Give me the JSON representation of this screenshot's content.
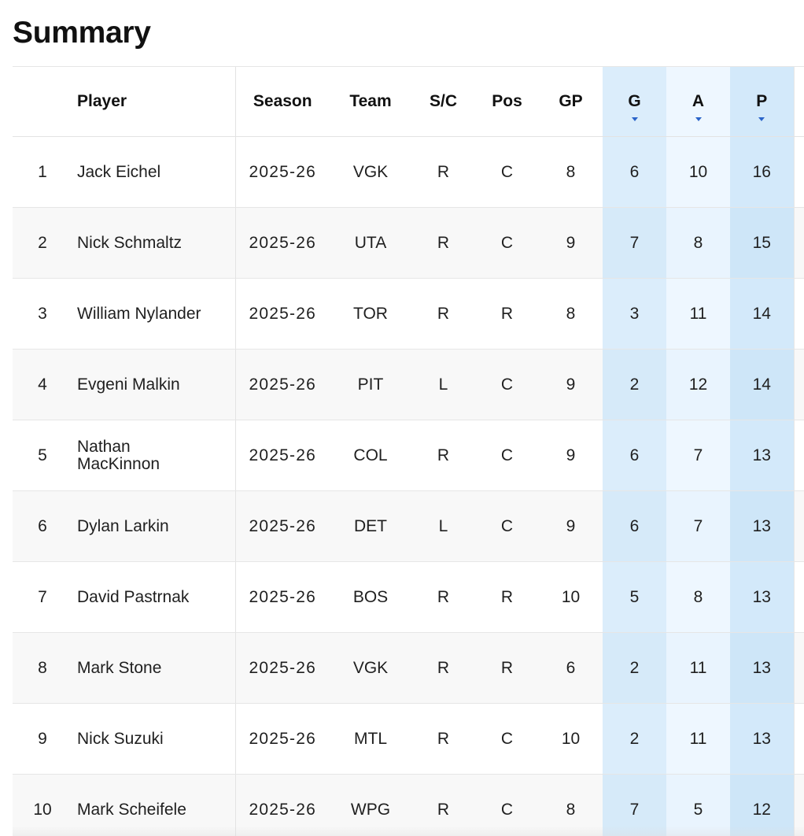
{
  "page_title": "Summary",
  "columns": {
    "rank": "",
    "player": "Player",
    "season": "Season",
    "team": "Team",
    "sc": "S/C",
    "pos": "Pos",
    "gp": "GP",
    "g": "G",
    "a": "A",
    "p": "P"
  },
  "sorted_columns": [
    "G",
    "A",
    "P"
  ],
  "highlight_colors": {
    "g_column": "#dbedfb",
    "a_column": "#eef7ff",
    "p_column": "#d3e9fa",
    "sort_arrow": "#2b64c9"
  },
  "rows": [
    {
      "rank": "1",
      "player": "Jack Eichel",
      "season": "2025-26",
      "team": "VGK",
      "sc": "R",
      "pos": "C",
      "gp": "8",
      "g": "6",
      "a": "10",
      "p": "16"
    },
    {
      "rank": "2",
      "player": "Nick Schmaltz",
      "season": "2025-26",
      "team": "UTA",
      "sc": "R",
      "pos": "C",
      "gp": "9",
      "g": "7",
      "a": "8",
      "p": "15"
    },
    {
      "rank": "3",
      "player": "William Nylander",
      "season": "2025-26",
      "team": "TOR",
      "sc": "R",
      "pos": "R",
      "gp": "8",
      "g": "3",
      "a": "11",
      "p": "14"
    },
    {
      "rank": "4",
      "player": "Evgeni Malkin",
      "season": "2025-26",
      "team": "PIT",
      "sc": "L",
      "pos": "C",
      "gp": "9",
      "g": "2",
      "a": "12",
      "p": "14"
    },
    {
      "rank": "5",
      "player": "Nathan MacKinnon",
      "season": "2025-26",
      "team": "COL",
      "sc": "R",
      "pos": "C",
      "gp": "9",
      "g": "6",
      "a": "7",
      "p": "13"
    },
    {
      "rank": "6",
      "player": "Dylan Larkin",
      "season": "2025-26",
      "team": "DET",
      "sc": "L",
      "pos": "C",
      "gp": "9",
      "g": "6",
      "a": "7",
      "p": "13"
    },
    {
      "rank": "7",
      "player": "David Pastrnak",
      "season": "2025-26",
      "team": "BOS",
      "sc": "R",
      "pos": "R",
      "gp": "10",
      "g": "5",
      "a": "8",
      "p": "13"
    },
    {
      "rank": "8",
      "player": "Mark Stone",
      "season": "2025-26",
      "team": "VGK",
      "sc": "R",
      "pos": "R",
      "gp": "6",
      "g": "2",
      "a": "11",
      "p": "13"
    },
    {
      "rank": "9",
      "player": "Nick Suzuki",
      "season": "2025-26",
      "team": "MTL",
      "sc": "R",
      "pos": "C",
      "gp": "10",
      "g": "2",
      "a": "11",
      "p": "13"
    },
    {
      "rank": "10",
      "player": "Mark Scheifele",
      "season": "2025-26",
      "team": "WPG",
      "sc": "R",
      "pos": "C",
      "gp": "8",
      "g": "7",
      "a": "5",
      "p": "12"
    }
  ]
}
